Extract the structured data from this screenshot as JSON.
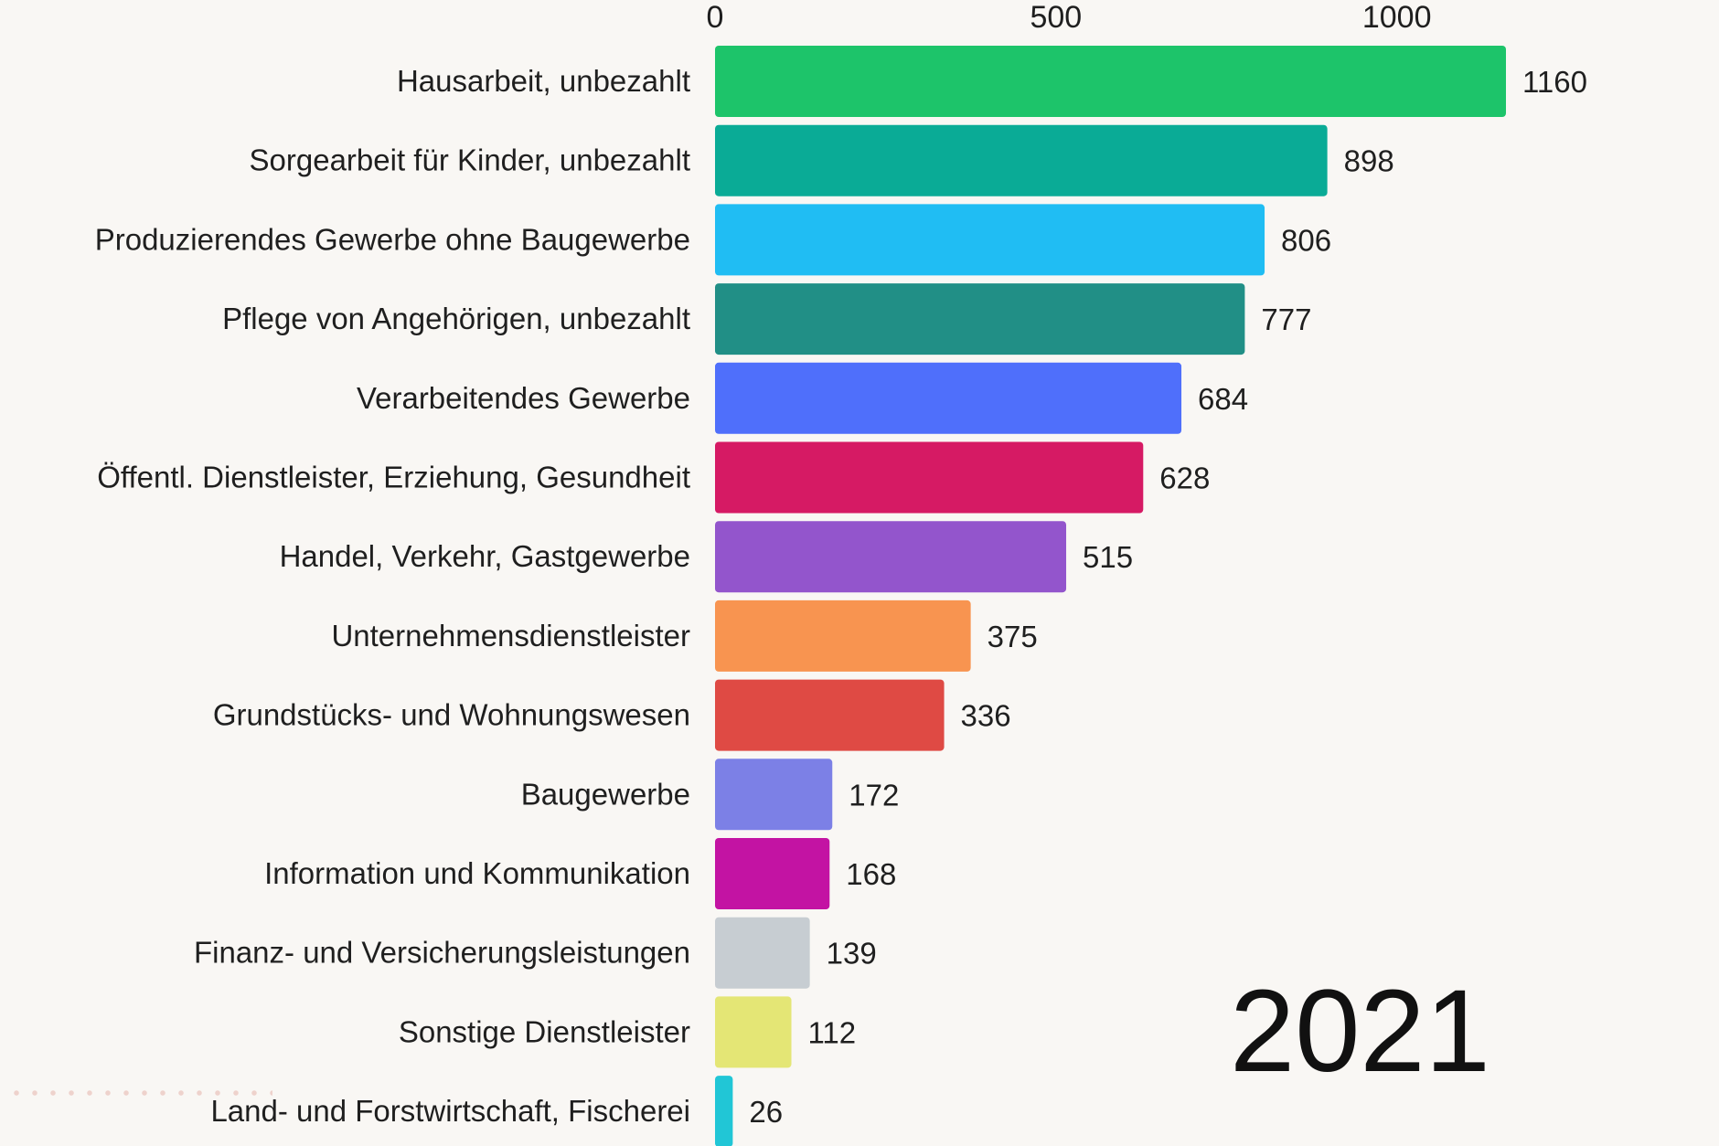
{
  "chart_data": {
    "type": "bar",
    "orientation": "horizontal",
    "categories": [
      "Hausarbeit, unbezahlt",
      "Sorgearbeit für Kinder, unbezahlt",
      "Produzierendes Gewerbe ohne Baugewerbe",
      "Pflege von Angehörigen, unbezahlt",
      "Verarbeitendes Gewerbe",
      "Öffentl. Dienstleister, Erziehung, Gesundheit",
      "Handel, Verkehr, Gastgewerbe",
      "Unternehmensdienstleister",
      "Grundstücks- und Wohnungswesen",
      "Baugewerbe",
      "Information und Kommunikation",
      "Finanz- und Versicherungsleistungen",
      "Sonstige Dienstleister",
      "Land- und Forstwirtschaft, Fischerei"
    ],
    "values": [
      1160,
      898,
      806,
      777,
      684,
      628,
      515,
      375,
      336,
      172,
      168,
      139,
      112,
      26
    ],
    "colors": [
      "#1dc46a",
      "#0aab96",
      "#20bdf3",
      "#218f86",
      "#4f6ffb",
      "#d61a64",
      "#9355cc",
      "#f89450",
      "#df4a44",
      "#7c80e6",
      "#c313a3",
      "#c7cdd2",
      "#e4e675",
      "#21c6d6"
    ],
    "xticks": [
      0,
      500,
      1000
    ],
    "xlim": [
      0,
      1160
    ],
    "axis_position": "top",
    "title": "",
    "xlabel": "",
    "ylabel": "",
    "grid": false,
    "annotation": "2021"
  }
}
